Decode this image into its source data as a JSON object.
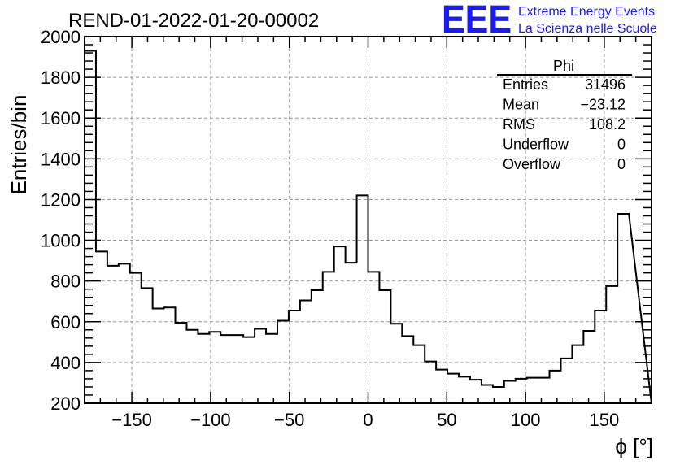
{
  "chart_data": {
    "type": "histogram",
    "title": "REND-01-2022-01-20-00002",
    "xlabel": "ϕ [°]",
    "ylabel": "Entries/bin",
    "xlim": [
      -180,
      180
    ],
    "ylim": [
      200,
      2000
    ],
    "bin_width": 7.2,
    "grid": true,
    "x_ticks": [
      -150,
      -100,
      -50,
      0,
      50,
      100,
      150
    ],
    "x_tick_labels": [
      "−150",
      "−100",
      "−50",
      "0",
      "50",
      "100",
      "150"
    ],
    "y_ticks": [
      200,
      400,
      600,
      800,
      1000,
      1200,
      1400,
      1600,
      1800,
      2000
    ],
    "y_tick_labels": [
      "200",
      "400",
      "600",
      "800",
      "1000",
      "1200",
      "1400",
      "1600",
      "1800",
      "2000"
    ],
    "values": [
      1930,
      945,
      875,
      885,
      840,
      765,
      665,
      670,
      595,
      560,
      540,
      550,
      535,
      535,
      525,
      565,
      540,
      605,
      655,
      705,
      755,
      845,
      970,
      890,
      1220,
      845,
      755,
      590,
      530,
      485,
      405,
      365,
      345,
      330,
      315,
      290,
      280,
      310,
      320,
      325,
      325,
      360,
      420,
      485,
      555,
      655,
      775,
      1130
    ],
    "stats": {
      "name": "Phi",
      "rows": [
        {
          "label": "Entries",
          "value": "31496"
        },
        {
          "label": "Mean",
          "value": "−23.12"
        },
        {
          "label": "RMS",
          "value": "108.2"
        },
        {
          "label": "Underflow",
          "value": "0"
        },
        {
          "label": "Overflow",
          "value": "0"
        }
      ]
    }
  },
  "logo": {
    "mark": "EEE",
    "line1": "Extreme Energy Events",
    "line2": "La Scienza nelle Scuole",
    "color": "#1a1aff"
  }
}
